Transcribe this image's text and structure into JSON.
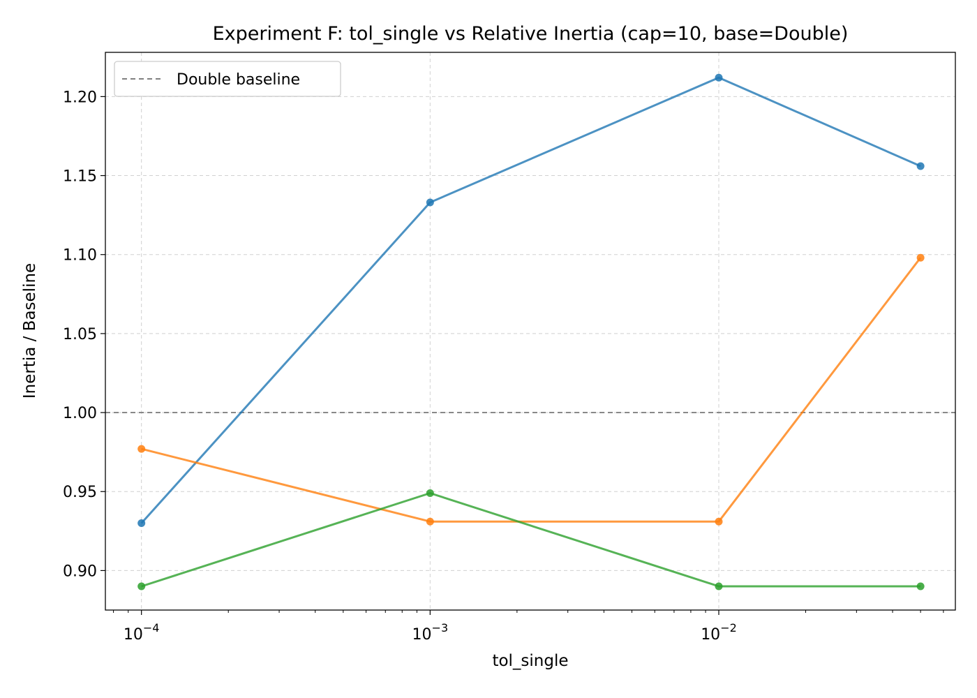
{
  "chart_data": {
    "type": "line",
    "title": "Experiment F: tol_single vs Relative Inertia (cap=10, base=Double)",
    "xlabel": "tol_single",
    "ylabel": "Inertia / Baseline",
    "xscale": "log",
    "x": [
      0.0001,
      0.001,
      0.01,
      0.05
    ],
    "xlim": [
      7.5e-05,
      0.066
    ],
    "ylim": [
      0.875,
      1.228
    ],
    "x_ticks": [
      {
        "value": 0.0001,
        "base": "10",
        "exp": "−4"
      },
      {
        "value": 0.001,
        "base": "10",
        "exp": "−3"
      },
      {
        "value": 0.01,
        "base": "10",
        "exp": "−2"
      }
    ],
    "y_ticks": [
      {
        "value": 0.9,
        "label": "0.90"
      },
      {
        "value": 0.95,
        "label": "0.95"
      },
      {
        "value": 1.0,
        "label": "1.00"
      },
      {
        "value": 1.05,
        "label": "1.05"
      },
      {
        "value": 1.1,
        "label": "1.10"
      },
      {
        "value": 1.15,
        "label": "1.15"
      },
      {
        "value": 1.2,
        "label": "1.20"
      }
    ],
    "series": [
      {
        "color": "#1f77b4",
        "values": [
          0.93,
          1.133,
          1.212,
          1.156
        ]
      },
      {
        "color": "#ff7f0e",
        "values": [
          0.977,
          0.931,
          0.931,
          1.098
        ]
      },
      {
        "color": "#2ca02c",
        "values": [
          0.89,
          0.949,
          0.89,
          0.89
        ]
      }
    ],
    "baseline": {
      "label": "Double baseline",
      "value": 1.0,
      "color": "#808080"
    },
    "grid": true,
    "legend_position": "top-left"
  }
}
